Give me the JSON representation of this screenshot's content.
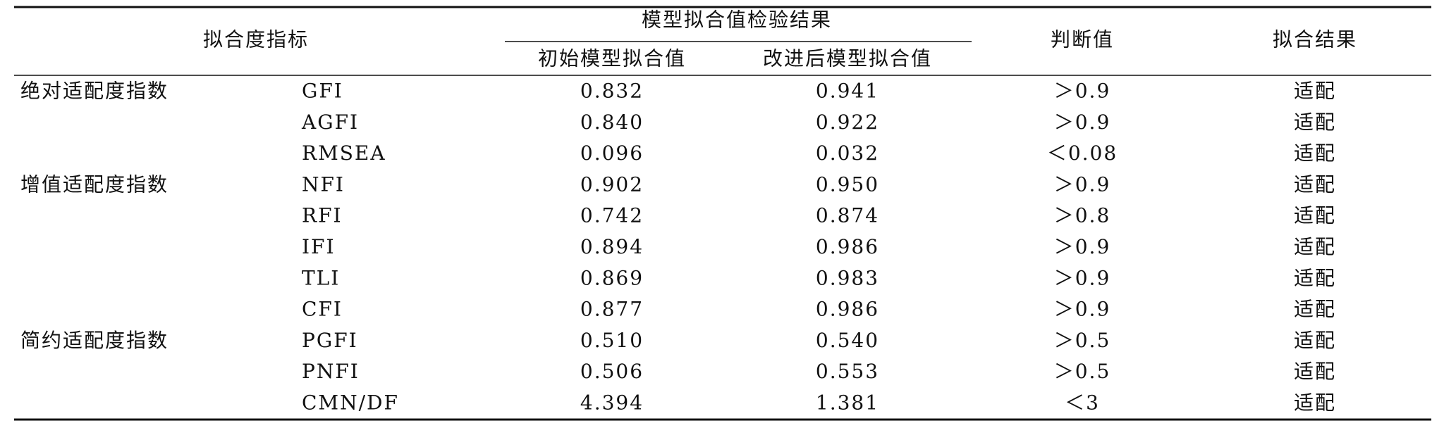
{
  "table": {
    "header": {
      "indicator": "拟合度指标",
      "group": "模型拟合值检验结果",
      "initial": "初始模型拟合值",
      "improved": "改进后模型拟合值",
      "criterion": "判断值",
      "result": "拟合结果"
    },
    "rows": [
      {
        "group": "绝对适配度指数",
        "index": "GFI",
        "initial": "0.832",
        "improved": "0.941",
        "criterion": "＞0.9",
        "result": "适配"
      },
      {
        "index": "AGFI",
        "initial": "0.840",
        "improved": "0.922",
        "criterion": "＞0.9",
        "result": "适配"
      },
      {
        "index": "RMSEA",
        "initial": "0.096",
        "improved": "0.032",
        "criterion": "＜0.08",
        "result": "适配"
      },
      {
        "group": "增值适配度指数",
        "index": "NFI",
        "initial": "0.902",
        "improved": "0.950",
        "criterion": "＞0.9",
        "result": "适配"
      },
      {
        "index": "RFI",
        "initial": "0.742",
        "improved": "0.874",
        "criterion": "＞0.8",
        "result": "适配"
      },
      {
        "index": "IFI",
        "initial": "0.894",
        "improved": "0.986",
        "criterion": "＞0.9",
        "result": "适配"
      },
      {
        "index": "TLI",
        "initial": "0.869",
        "improved": "0.983",
        "criterion": "＞0.9",
        "result": "适配"
      },
      {
        "index": "CFI",
        "initial": "0.877",
        "improved": "0.986",
        "criterion": "＞0.9",
        "result": "适配"
      },
      {
        "group": "简约适配度指数",
        "index": "PGFI",
        "initial": "0.510",
        "improved": "0.540",
        "criterion": "＞0.5",
        "result": "适配"
      },
      {
        "index": "PNFI",
        "initial": "0.506",
        "improved": "0.553",
        "criterion": "＞0.5",
        "result": "适配"
      },
      {
        "index": "CMN/DF",
        "initial": "4.394",
        "improved": "1.381",
        "criterion": "＜3",
        "result": "适配"
      }
    ]
  }
}
